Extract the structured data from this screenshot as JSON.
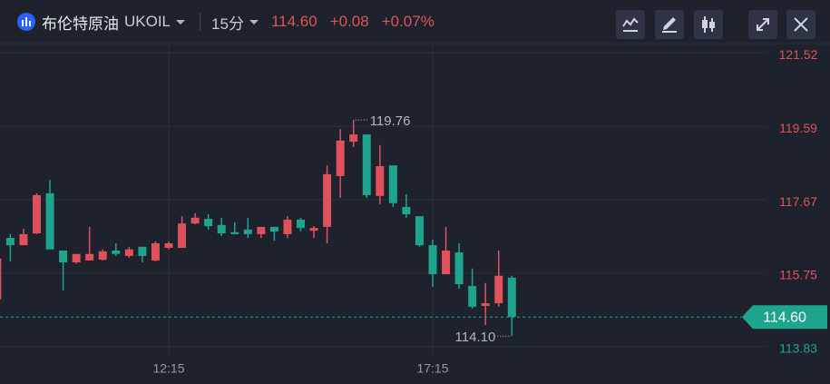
{
  "header": {
    "name": "布伦特原油",
    "code": "UKOIL",
    "interval": "15分",
    "price": "114.60",
    "change": "+0.08",
    "change_pct": "+0.07%"
  },
  "chart_data": {
    "type": "candlestick",
    "categories": [
      null,
      null,
      null,
      null,
      null,
      null,
      null,
      null,
      null,
      null,
      null,
      null,
      null,
      "12:15",
      null,
      null,
      null,
      null,
      null,
      null,
      null,
      null,
      null,
      null,
      null,
      null,
      null,
      null,
      null,
      null,
      null,
      null,
      null,
      "17:15",
      null,
      null,
      null,
      null,
      null,
      null
    ],
    "open": [
      115.06,
      116.67,
      116.48,
      116.79,
      117.84,
      116.34,
      116.03,
      116.08,
      116.1,
      116.34,
      116.2,
      116.44,
      116.08,
      116.41,
      116.41,
      117.05,
      117.17,
      117.01,
      116.82,
      116.89,
      116.77,
      116.96,
      116.77,
      117.15,
      116.86,
      116.96,
      118.29,
      119.19,
      119.38,
      117.77,
      118.57,
      117.48,
      117.24,
      116.48,
      115.72,
      116.29,
      115.41,
      114.89,
      114.96,
      115.63
    ],
    "high": [
      116.2,
      116.77,
      116.91,
      117.84,
      118.19,
      116.34,
      116.25,
      116.96,
      116.37,
      116.53,
      116.44,
      116.44,
      116.58,
      116.58,
      117.24,
      117.32,
      117.29,
      117.2,
      117.08,
      117.2,
      116.96,
      116.96,
      117.24,
      117.2,
      116.98,
      118.57,
      119.52,
      119.76,
      119.38,
      119.1,
      118.57,
      117.81,
      117.24,
      116.63,
      116.96,
      116.53,
      115.87,
      115.49,
      116.34,
      115.68
    ],
    "low": [
      115.0,
      116.06,
      116.48,
      116.77,
      116.37,
      115.3,
      116.0,
      116.08,
      116.08,
      116.2,
      116.15,
      116.03,
      116.06,
      116.37,
      116.41,
      117.03,
      116.89,
      116.72,
      116.77,
      116.67,
      116.67,
      116.6,
      116.67,
      116.84,
      116.67,
      116.53,
      117.72,
      119.05,
      117.72,
      117.55,
      117.48,
      117.2,
      116.44,
      115.39,
      115.72,
      115.34,
      114.82,
      114.39,
      114.87,
      114.1
    ],
    "close": [
      116.13,
      116.48,
      116.77,
      117.79,
      116.37,
      116.03,
      116.25,
      116.25,
      116.32,
      116.25,
      116.37,
      116.2,
      116.53,
      116.53,
      117.05,
      117.2,
      116.98,
      116.79,
      116.77,
      116.77,
      116.96,
      116.84,
      117.15,
      116.93,
      116.93,
      118.34,
      119.22,
      119.38,
      117.79,
      118.55,
      117.58,
      117.29,
      116.48,
      115.72,
      116.34,
      115.46,
      114.87,
      114.96,
      115.68,
      114.6
    ],
    "up_color": "#e0515b",
    "down_color": "#1fa58e",
    "ylim": [
      113.63,
      121.76
    ],
    "yticks": [
      113.83,
      115.75,
      117.67,
      119.59,
      121.52
    ],
    "grid": true,
    "annotations": [
      {
        "value": 119.76,
        "label": "119.76"
      },
      {
        "value": 114.1,
        "label": "114.10"
      }
    ],
    "last_price": {
      "value": 114.6,
      "label": "114.60"
    }
  }
}
